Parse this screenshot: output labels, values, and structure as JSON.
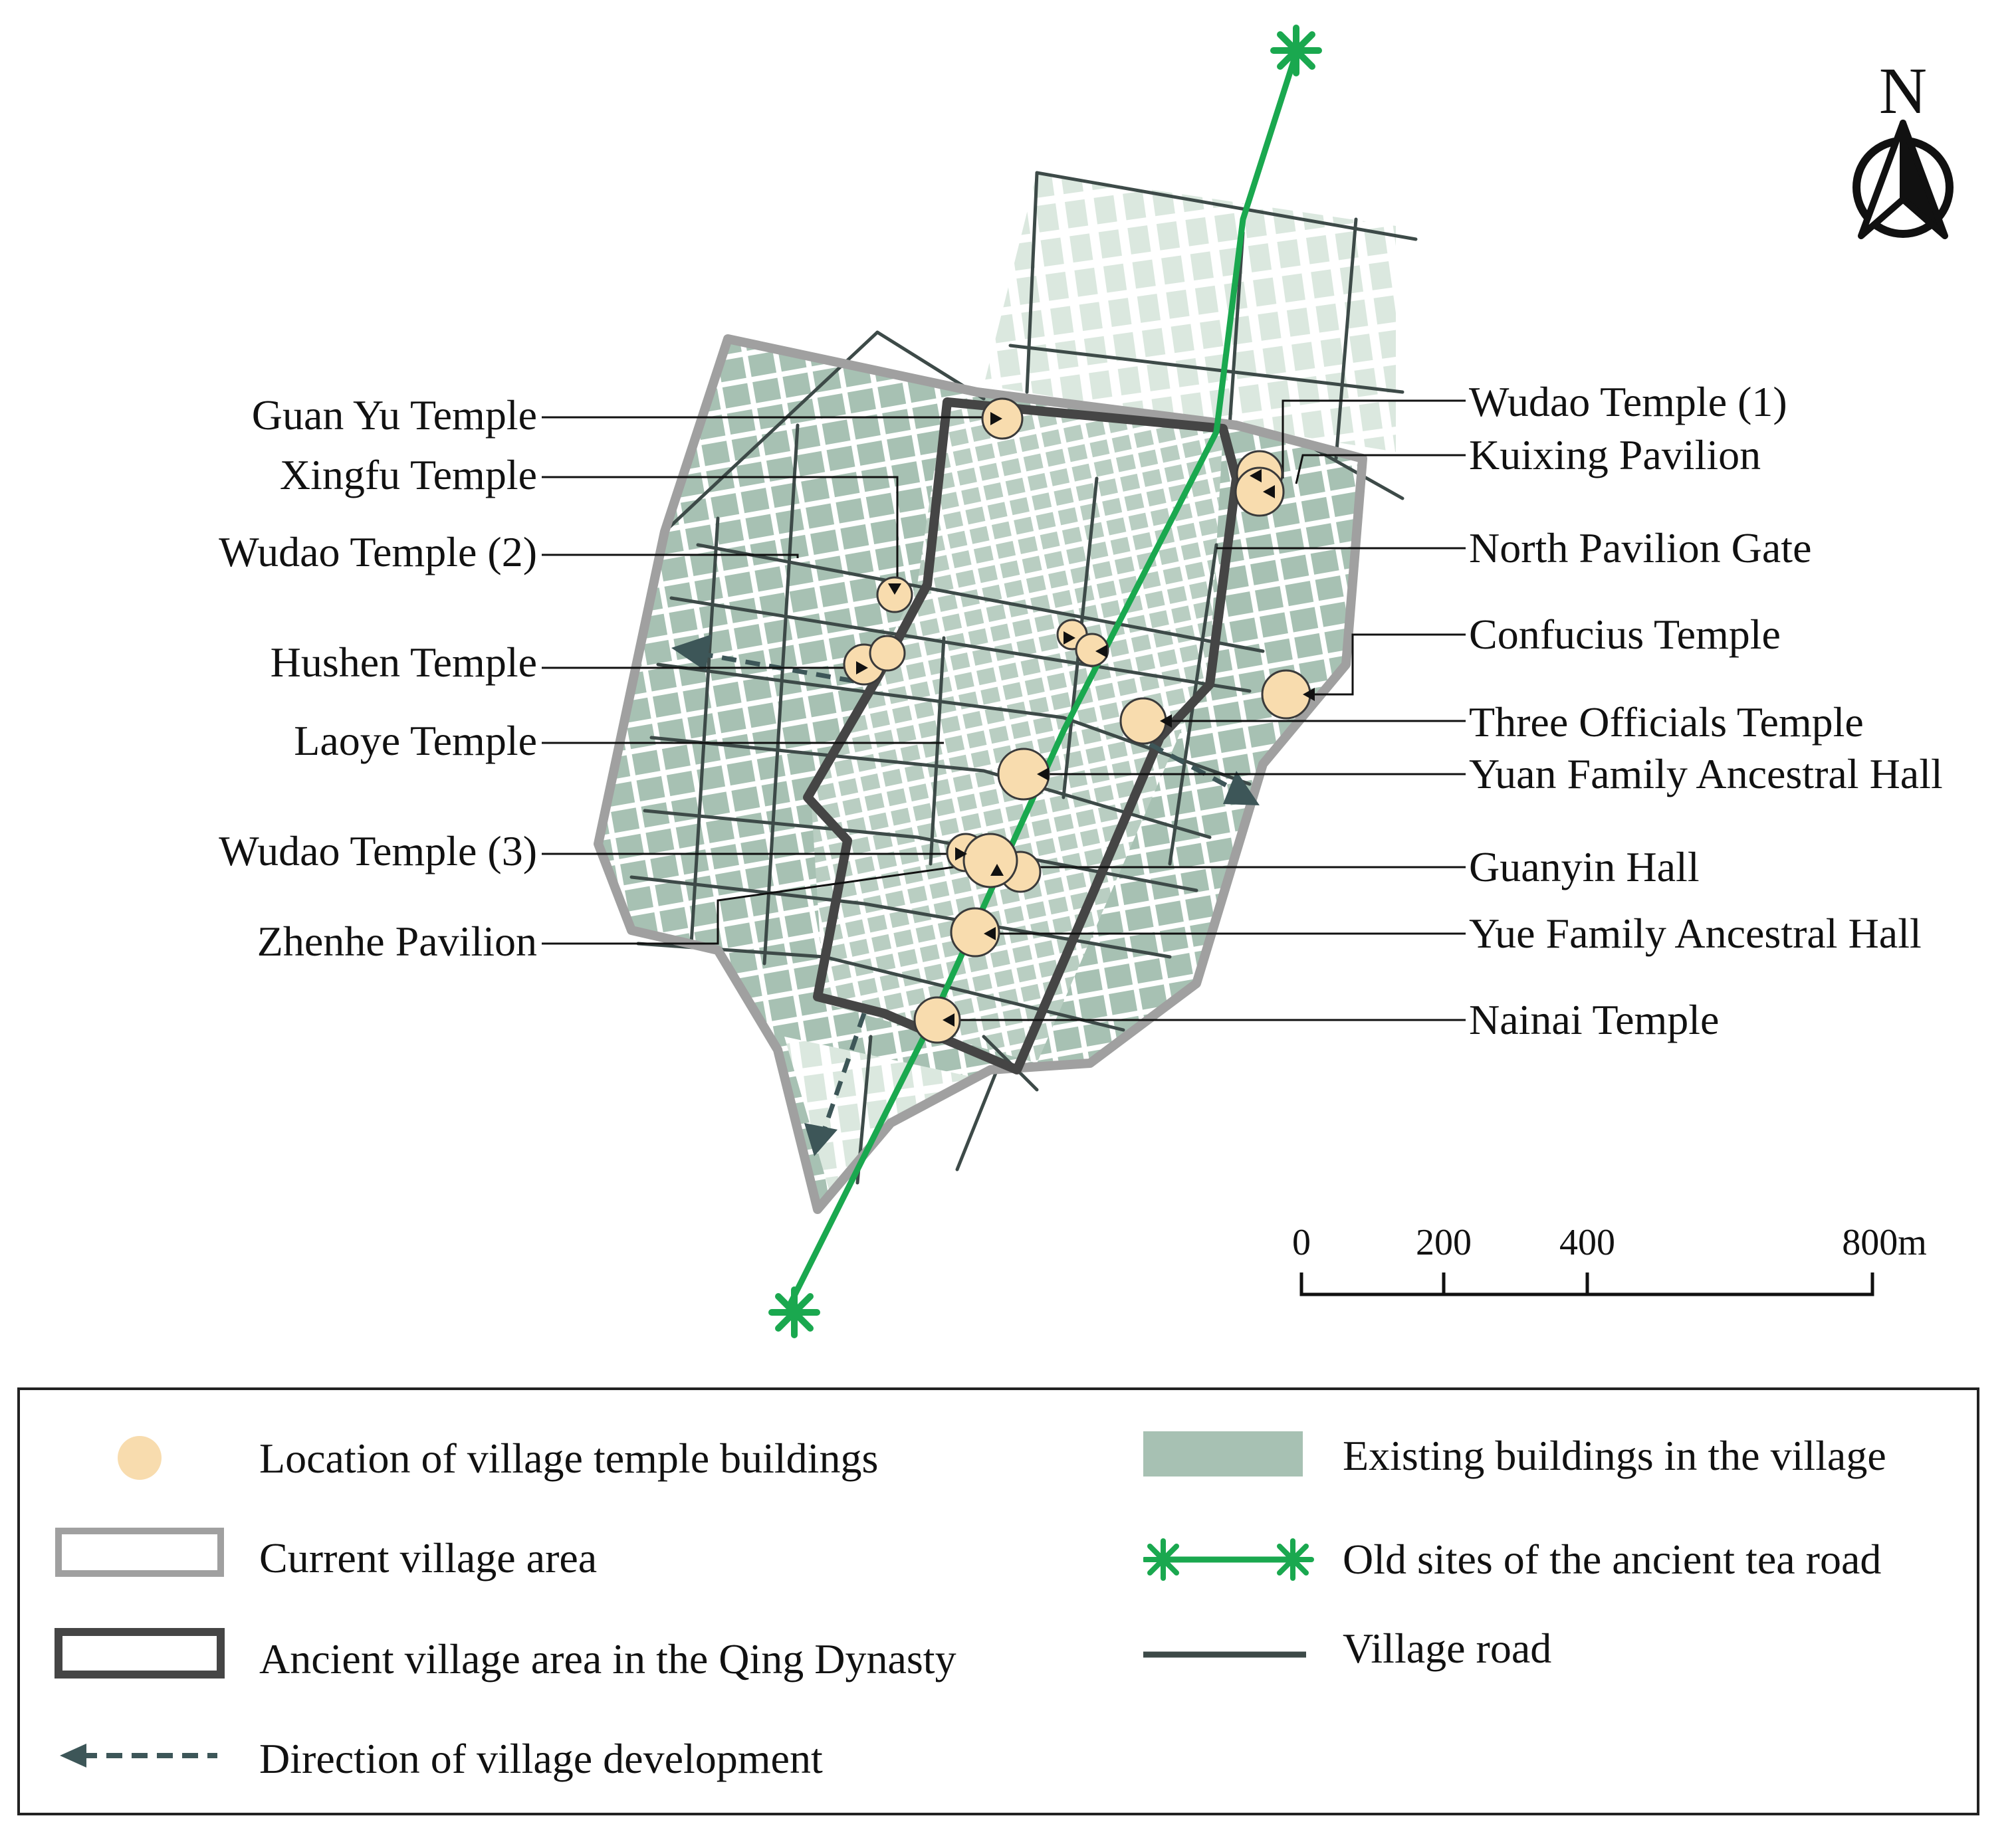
{
  "compass": {
    "letter": "N"
  },
  "scale_bar": {
    "ticks": [
      "0",
      "200",
      "400",
      "800m"
    ]
  },
  "temples": [
    "Guan Yu Temple",
    "Xingfu Temple",
    "Wudao Temple (2)",
    "Hushen Temple",
    "Laoye Temple",
    "Wudao Temple (3)",
    "Zhenhe Pavilion",
    "Wudao Temple (1)",
    "Kuixing Pavilion",
    "North Pavilion Gate",
    "Confucius Temple",
    "Three Officials Temple",
    "Yuan Family Ancestral Hall",
    "Guanyin Hall",
    "Yue Family Ancestral Hall",
    "Nainai Temple"
  ],
  "legend": {
    "temple_location": "Location of village temple buildings",
    "current_area": "Current village area",
    "ancient_area": "Ancient village area in the Qing Dynasty",
    "development_direction": "Direction of village development",
    "existing_buildings": "Existing buildings in the village",
    "tea_road": "Old sites of the ancient tea road",
    "village_road": "Village road"
  },
  "colors": {
    "temple_fill": "#f8dcae",
    "building_fill": "#a7c1b3",
    "building_light": "#d8e6dc",
    "current_area_stroke": "#a0a0a0",
    "ancient_area_stroke": "#454545",
    "tea_road": "#1aa84f",
    "village_road": "#3d4a48",
    "development_arrow": "#3d5658"
  }
}
